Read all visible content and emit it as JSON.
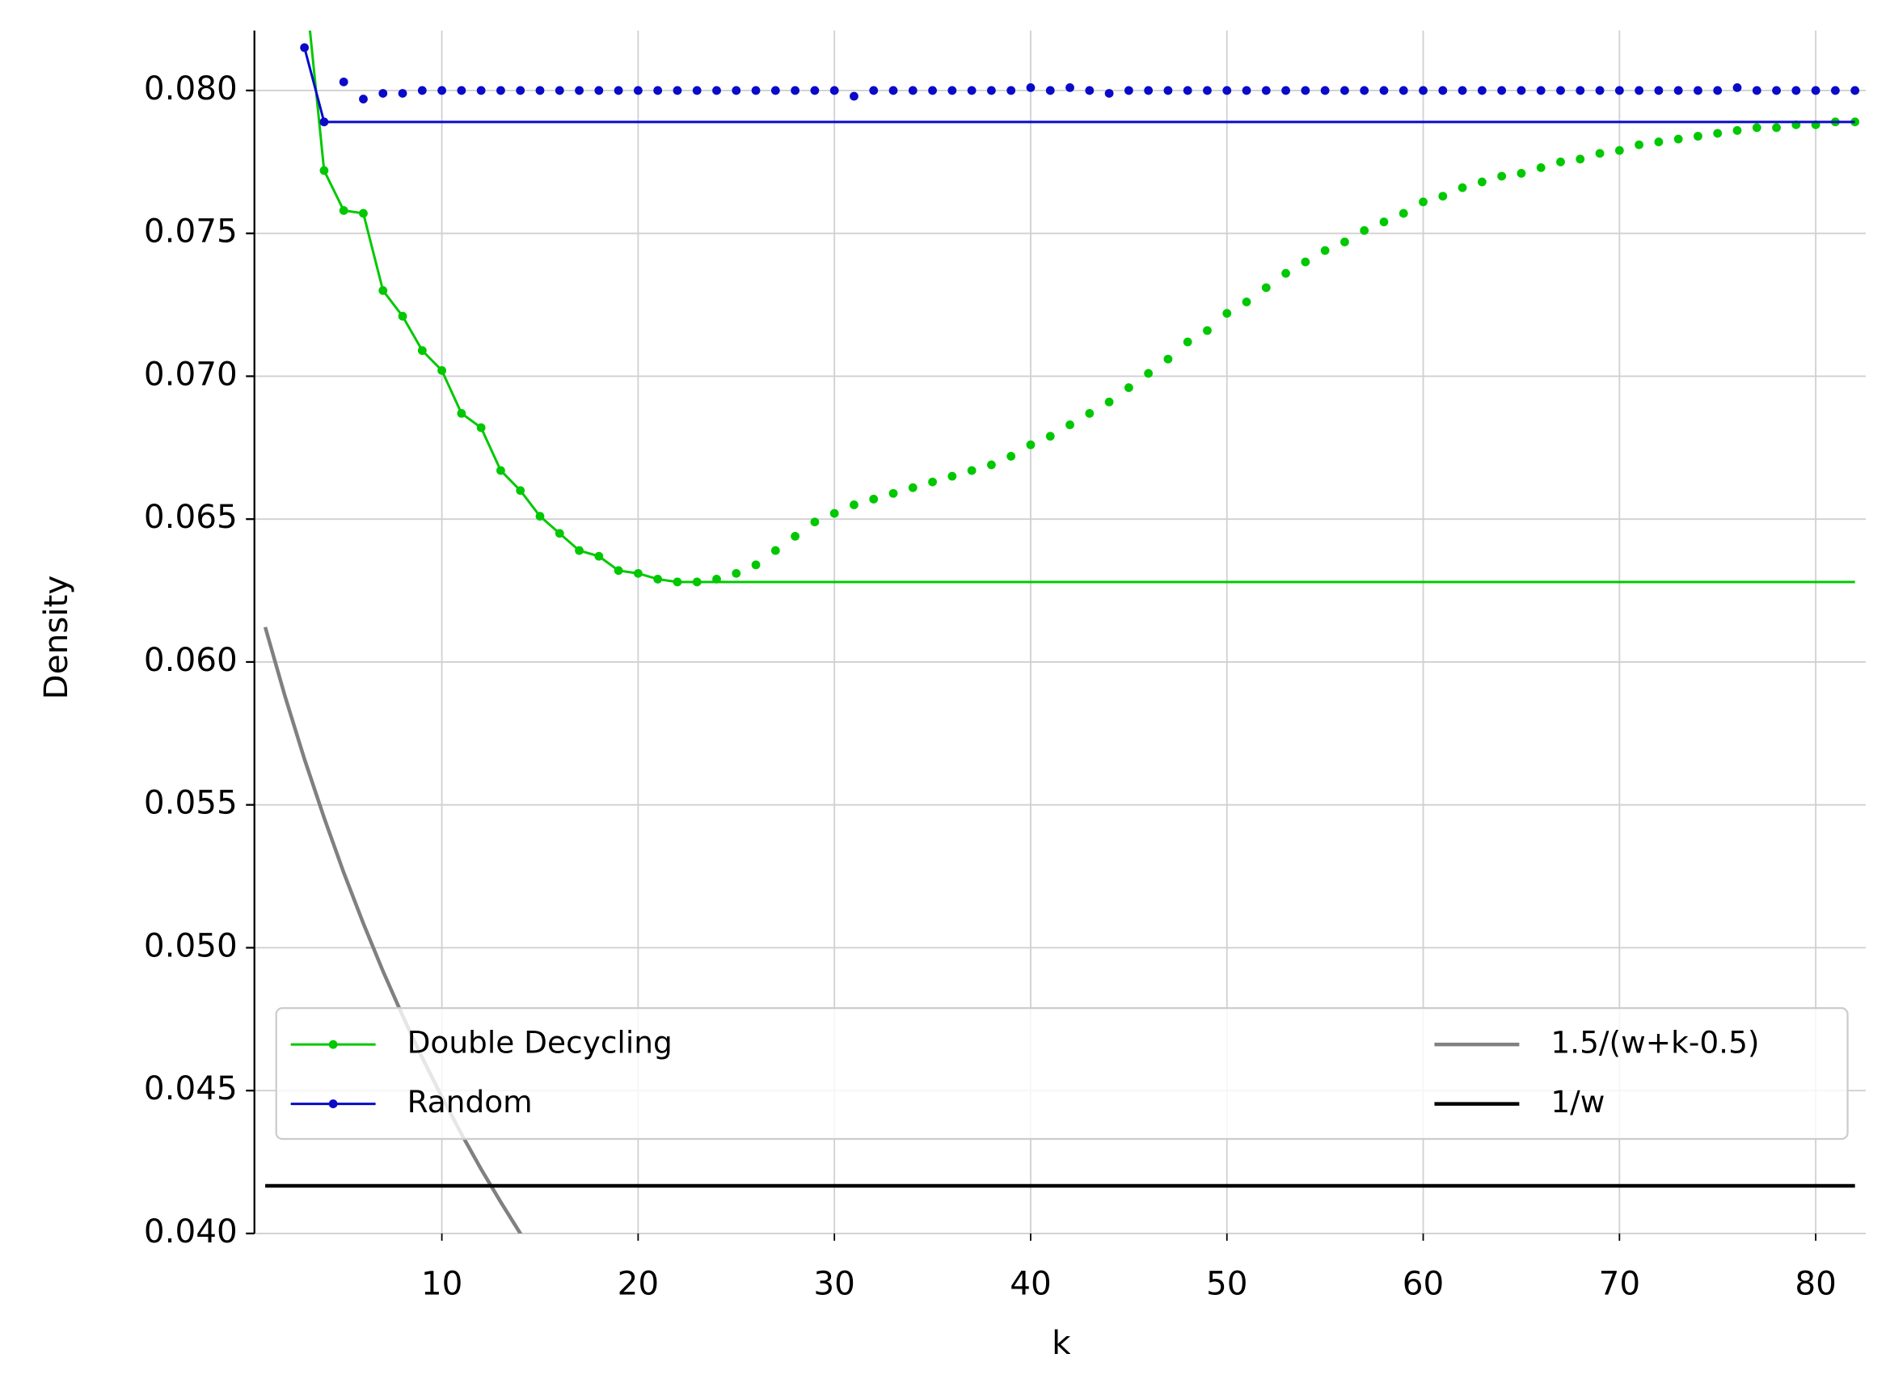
{
  "chart_data": {
    "type": "line",
    "xlabel": "k",
    "ylabel": "Density",
    "xlim": [
      0.45,
      82.55
    ],
    "ylim": [
      0.04,
      0.0821
    ],
    "xticks": [
      10,
      20,
      30,
      40,
      50,
      60,
      70,
      80
    ],
    "yticks": [
      {
        "value": 0.04,
        "label": "0.040"
      },
      {
        "value": 0.045,
        "label": "0.045"
      },
      {
        "value": 0.05,
        "label": "0.050"
      },
      {
        "value": 0.055,
        "label": "0.055"
      },
      {
        "value": 0.06,
        "label": "0.060"
      },
      {
        "value": 0.065,
        "label": "0.065"
      },
      {
        "value": 0.07,
        "label": "0.070"
      },
      {
        "value": 0.075,
        "label": "0.075"
      },
      {
        "value": 0.08,
        "label": "0.080"
      }
    ],
    "grid": true,
    "legend": "lower center",
    "series": [
      {
        "name": "Double Decycling",
        "color": "#00c800",
        "markers": true,
        "x": [
          3,
          4,
          5,
          6,
          7,
          8,
          9,
          10,
          11,
          12,
          13,
          14,
          15,
          16,
          17,
          18,
          19,
          20,
          21,
          22,
          23,
          24,
          25,
          26,
          27,
          28,
          29,
          30,
          31,
          32,
          33,
          34,
          35,
          36,
          37,
          38,
          39,
          40,
          41,
          42,
          43,
          44,
          45,
          46,
          47,
          48,
          49,
          50,
          51,
          52,
          53,
          54,
          55,
          56,
          57,
          58,
          59,
          60,
          61,
          62,
          63,
          64,
          65,
          66,
          67,
          68,
          69,
          70,
          71,
          72,
          73,
          74,
          75,
          76,
          77,
          78,
          79,
          80,
          81,
          82
        ],
        "values": [
          0.084,
          0.0772,
          0.0758,
          0.0757,
          0.073,
          0.0721,
          0.0709,
          0.0702,
          0.0687,
          0.0682,
          0.0667,
          0.066,
          0.0651,
          0.0645,
          0.0639,
          0.0637,
          0.0632,
          0.0631,
          0.0629,
          0.0628,
          0.0628,
          0.0629,
          0.0631,
          0.0634,
          0.0639,
          0.0644,
          0.0649,
          0.0652,
          0.0655,
          0.0657,
          0.0659,
          0.0661,
          0.0663,
          0.0665,
          0.0667,
          0.0669,
          0.0672,
          0.0676,
          0.0679,
          0.0683,
          0.0687,
          0.0691,
          0.0696,
          0.0701,
          0.0706,
          0.0712,
          0.0716,
          0.0722,
          0.0726,
          0.0731,
          0.0736,
          0.074,
          0.0744,
          0.0747,
          0.0751,
          0.0754,
          0.0757,
          0.0761,
          0.0763,
          0.0766,
          0.0768,
          0.077,
          0.0771,
          0.0773,
          0.0775,
          0.0776,
          0.0778,
          0.0779,
          0.0781,
          0.0782,
          0.0783,
          0.0784,
          0.0785,
          0.0786,
          0.0787,
          0.0787,
          0.0788,
          0.0788,
          0.0789,
          0.0789
        ],
        "line_x": [
          3,
          4,
          5,
          6,
          7,
          8,
          9,
          10,
          11,
          12,
          13,
          14,
          15,
          16,
          17,
          18,
          19,
          20,
          21,
          22,
          23,
          82
        ],
        "line_values": [
          0.084,
          0.0772,
          0.0758,
          0.0757,
          0.073,
          0.0721,
          0.0709,
          0.0702,
          0.0687,
          0.0682,
          0.0667,
          0.066,
          0.0651,
          0.0645,
          0.0639,
          0.0637,
          0.0632,
          0.0631,
          0.0629,
          0.0628,
          0.0628,
          0.0628
        ]
      },
      {
        "name": "Random",
        "color": "#0a0ac8",
        "markers": true,
        "x": [
          3,
          4,
          5,
          6,
          7,
          8,
          9,
          10,
          11,
          12,
          13,
          14,
          15,
          16,
          17,
          18,
          19,
          20,
          21,
          22,
          23,
          24,
          25,
          26,
          27,
          28,
          29,
          30,
          31,
          32,
          33,
          34,
          35,
          36,
          37,
          38,
          39,
          40,
          41,
          42,
          43,
          44,
          45,
          46,
          47,
          48,
          49,
          50,
          51,
          52,
          53,
          54,
          55,
          56,
          57,
          58,
          59,
          60,
          61,
          62,
          63,
          64,
          65,
          66,
          67,
          68,
          69,
          70,
          71,
          72,
          73,
          74,
          75,
          76,
          77,
          78,
          79,
          80,
          81,
          82
        ],
        "values": [
          0.0815,
          0.0789,
          0.0803,
          0.0797,
          0.0799,
          0.0799,
          0.08,
          0.08,
          0.08,
          0.08,
          0.08,
          0.08,
          0.08,
          0.08,
          0.08,
          0.08,
          0.08,
          0.08,
          0.08,
          0.08,
          0.08,
          0.08,
          0.08,
          0.08,
          0.08,
          0.08,
          0.08,
          0.08,
          0.0798,
          0.08,
          0.08,
          0.08,
          0.08,
          0.08,
          0.08,
          0.08,
          0.08,
          0.0801,
          0.08,
          0.0801,
          0.08,
          0.0799,
          0.08,
          0.08,
          0.08,
          0.08,
          0.08,
          0.08,
          0.08,
          0.08,
          0.08,
          0.08,
          0.08,
          0.08,
          0.08,
          0.08,
          0.08,
          0.08,
          0.08,
          0.08,
          0.08,
          0.08,
          0.08,
          0.08,
          0.08,
          0.08,
          0.08,
          0.08,
          0.08,
          0.08,
          0.08,
          0.08,
          0.08,
          0.0801,
          0.08,
          0.08,
          0.08,
          0.08,
          0.08,
          0.08
        ],
        "line_x": [
          3,
          4,
          82
        ],
        "line_values": [
          0.0815,
          0.0789,
          0.0789
        ]
      },
      {
        "name": "1.5/(w+k-0.5)",
        "color": "#808080",
        "markers": false,
        "x": [
          1,
          2,
          3,
          4,
          5,
          6,
          7,
          8,
          9,
          10,
          11,
          12,
          13,
          14,
          15
        ],
        "values": [
          0.06122,
          0.05882,
          0.0566,
          0.05455,
          0.05263,
          0.05085,
          0.04918,
          0.04762,
          0.04615,
          0.04478,
          0.04348,
          0.04225,
          0.0411,
          0.04,
          0.03896
        ]
      },
      {
        "name": "1/w",
        "color": "#000000",
        "markers": false,
        "x": [
          1,
          82
        ],
        "values": [
          0.041667,
          0.041667
        ]
      }
    ]
  }
}
